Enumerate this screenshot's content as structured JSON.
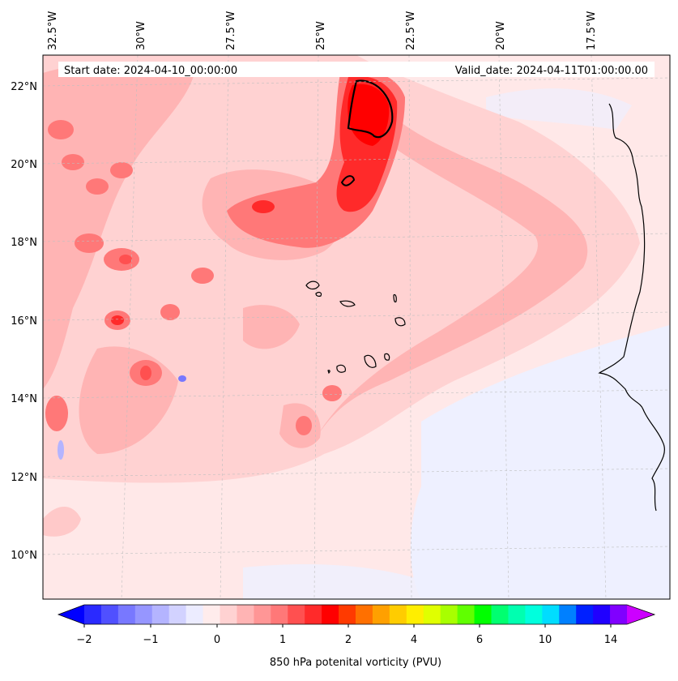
{
  "map": {
    "start_date": "Start date: 2024-04-10_00:00:00",
    "valid_date": "Valid_date: 2024-04-11T01:00:00.00",
    "top_labels": [
      "32.5°W",
      "30°W",
      "27.5°W",
      "25°W",
      "22.5°W",
      "20°W",
      "17.5°W"
    ],
    "lat_labels": [
      "22°N",
      "20°N",
      "18°N",
      "16°N",
      "14°N",
      "12°N",
      "10°N"
    ],
    "colors": {
      "background_pv": "#ffe8e8",
      "negative_pv": "#eef0ff",
      "coast": "#000000"
    }
  },
  "colorbar": {
    "label": "850 hPa potenital vorticity (PVU)",
    "ticks": [
      "−2",
      "−1",
      "0",
      "1",
      "2",
      "4",
      "6",
      "10",
      "14"
    ],
    "colors": [
      "#0000ff",
      "#2a2aff",
      "#5050ff",
      "#7878ff",
      "#9696ff",
      "#b4b4ff",
      "#d2d2ff",
      "#ececff",
      "#ffecec",
      "#ffd2d2",
      "#ffb4b4",
      "#ff9696",
      "#ff7878",
      "#ff5050",
      "#ff2a2a",
      "#ff0000",
      "#ff3a00",
      "#ff7000",
      "#ffa000",
      "#ffcc00",
      "#ffee00",
      "#e0ff00",
      "#a8ff00",
      "#60ff00",
      "#00ff00",
      "#00ff70",
      "#00ffb0",
      "#00ffdd",
      "#00ddff",
      "#0080ff",
      "#0020ff",
      "#2000ff",
      "#8000ff",
      "#cc00ff"
    ]
  }
}
